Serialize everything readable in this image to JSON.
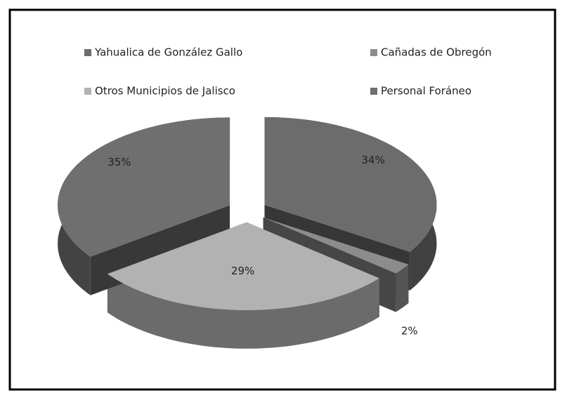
{
  "chart_data": {
    "type": "pie3d",
    "categories": [
      "Yahualica de González Gallo",
      "Cañadas de Obregón",
      "Otros Municipios de Jalisco",
      "Personal Foráneo"
    ],
    "values": [
      34,
      2,
      29,
      35
    ],
    "value_labels": [
      "34%",
      "2%",
      "29%",
      "35%"
    ],
    "colors": [
      "#6c6c6c",
      "#8c8c8c",
      "#b2b2b2",
      "#6f6f6f"
    ],
    "legend": "top"
  }
}
